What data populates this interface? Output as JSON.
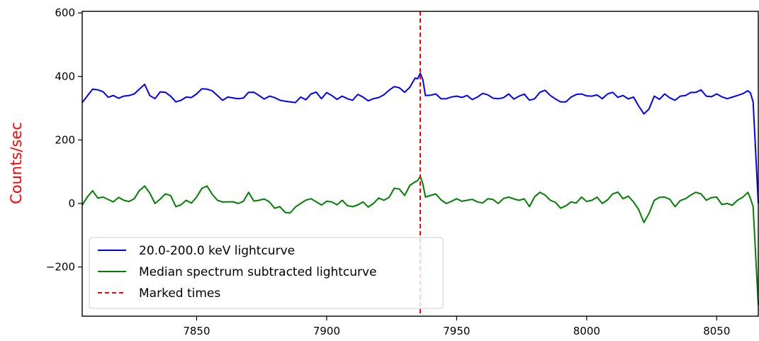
{
  "chart_data": {
    "type": "line",
    "title": "",
    "xlabel": "",
    "ylabel": "Counts/sec",
    "ylabel_color": "#ff0000",
    "xlim": [
      7806,
      8066
    ],
    "ylim": [
      -355,
      605
    ],
    "xticks": [
      7850,
      7900,
      7950,
      8000,
      8050
    ],
    "yticks": [
      -200,
      0,
      200,
      400,
      600
    ],
    "ytick_labels": [
      "−200",
      "0",
      "200",
      "400",
      "600"
    ],
    "grid": false,
    "legend_position": "lower-left",
    "series": [
      {
        "name": "20.0-200.0 keV lightcurve",
        "color": "#0000ff",
        "style": "solid",
        "base": 335,
        "x": [
          7806,
          7810,
          7814,
          7818,
          7822,
          7826,
          7830,
          7834,
          7838,
          7842,
          7846,
          7850,
          7854,
          7858,
          7862,
          7866,
          7870,
          7874,
          7878,
          7882,
          7886,
          7890,
          7894,
          7898,
          7902,
          7906,
          7910,
          7914,
          7918,
          7922,
          7926,
          7930,
          7934,
          7936,
          7938,
          7942,
          7946,
          7950,
          7954,
          7958,
          7962,
          7966,
          7970,
          7974,
          7978,
          7982,
          7986,
          7990,
          7994,
          7998,
          8002,
          8006,
          8010,
          8014,
          8018,
          8022,
          8026,
          8030,
          8034,
          8038,
          8042,
          8046,
          8050,
          8054,
          8058,
          8062,
          8064,
          8066
        ],
        "values": [
          318,
          360,
          352,
          340,
          338,
          345,
          375,
          330,
          350,
          320,
          335,
          345,
          360,
          340,
          335,
          330,
          350,
          340,
          338,
          325,
          320,
          335,
          345,
          330,
          340,
          338,
          325,
          335,
          330,
          342,
          368,
          350,
          395,
          410,
          340,
          345,
          330,
          338,
          340,
          335,
          342,
          330,
          345,
          338,
          325,
          350,
          340,
          320,
          335,
          345,
          338,
          330,
          350,
          340,
          335,
          282,
          338,
          345,
          325,
          340,
          350,
          338,
          345,
          330,
          340,
          355,
          320,
          0
        ]
      },
      {
        "name": "Median spectrum subtracted lightcurve",
        "color": "#008000",
        "style": "solid",
        "base": 0,
        "x": [
          7806,
          7810,
          7814,
          7818,
          7822,
          7826,
          7830,
          7834,
          7838,
          7842,
          7846,
          7850,
          7854,
          7858,
          7862,
          7866,
          7870,
          7874,
          7878,
          7882,
          7886,
          7890,
          7894,
          7898,
          7902,
          7906,
          7910,
          7914,
          7918,
          7922,
          7926,
          7930,
          7934,
          7936,
          7938,
          7942,
          7946,
          7950,
          7954,
          7958,
          7962,
          7966,
          7970,
          7974,
          7978,
          7982,
          7986,
          7990,
          7994,
          7998,
          8002,
          8006,
          8010,
          8014,
          8018,
          8022,
          8026,
          8030,
          8034,
          8038,
          8042,
          8046,
          8050,
          8054,
          8058,
          8062,
          8064,
          8066
        ],
        "values": [
          -5,
          40,
          20,
          5,
          10,
          15,
          55,
          0,
          30,
          -10,
          10,
          20,
          55,
          10,
          5,
          0,
          35,
          10,
          5,
          -10,
          -30,
          0,
          15,
          -5,
          5,
          10,
          -10,
          5,
          0,
          10,
          48,
          25,
          68,
          85,
          20,
          30,
          0,
          15,
          10,
          5,
          15,
          0,
          20,
          10,
          -10,
          35,
          10,
          -15,
          5,
          20,
          10,
          0,
          30,
          15,
          5,
          -60,
          10,
          20,
          -10,
          15,
          35,
          10,
          20,
          0,
          10,
          35,
          -10,
          -320
        ]
      },
      {
        "name": "Marked times",
        "color": "#ff0000",
        "style": "dashed",
        "vline_x": 7936
      }
    ]
  }
}
